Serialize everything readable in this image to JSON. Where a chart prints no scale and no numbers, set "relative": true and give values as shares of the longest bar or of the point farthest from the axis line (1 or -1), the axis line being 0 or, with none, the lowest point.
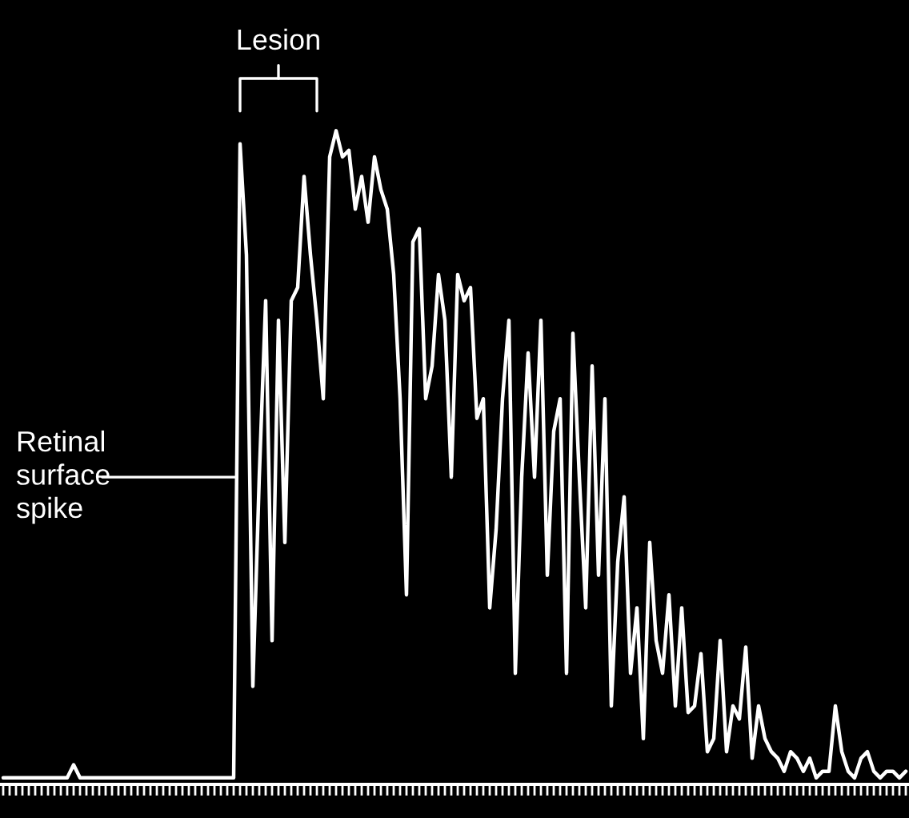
{
  "chart_data": {
    "type": "line",
    "relative": true,
    "grid": false,
    "legend": false,
    "marker": "none",
    "line_style": "solid",
    "categories": [
      null,
      null,
      null,
      null,
      null,
      null,
      null,
      null,
      null,
      null,
      null,
      null,
      null,
      null,
      null,
      null,
      null,
      null,
      null,
      null,
      null,
      null,
      null,
      null,
      null,
      null,
      null,
      null,
      null,
      null,
      null,
      null,
      null,
      null,
      null,
      null,
      null,
      null,
      null,
      null,
      null,
      null,
      null,
      null,
      null,
      null,
      null,
      null,
      null,
      null,
      null,
      null,
      null,
      null,
      null,
      null,
      null,
      null,
      null,
      null,
      null,
      null,
      null,
      null,
      null,
      null,
      null,
      null,
      null,
      null,
      null,
      null,
      null,
      null,
      null,
      null,
      null,
      null,
      null,
      null,
      null,
      null,
      null,
      null,
      null,
      null,
      null,
      null,
      null,
      null,
      null,
      null,
      null,
      null,
      null,
      null,
      null,
      null,
      null,
      null,
      null,
      null,
      null,
      null,
      null,
      null,
      null,
      null,
      null,
      null,
      null,
      null,
      null,
      null,
      null,
      null,
      null,
      null,
      null,
      null,
      null,
      null,
      null,
      null,
      null,
      null,
      null,
      null,
      null,
      null,
      null,
      null,
      null,
      null,
      null,
      null,
      null,
      null,
      null,
      null,
      null,
      null
    ],
    "series": [
      {
        "color": "#ffffff",
        "values": [
          0.01,
          0.01,
          0.01,
          0.01,
          0.01,
          0.01,
          0.01,
          0.01,
          0.01,
          0.01,
          0.01,
          0.03,
          0.01,
          0.01,
          0.01,
          0.01,
          0.01,
          0.01,
          0.01,
          0.01,
          0.01,
          0.01,
          0.01,
          0.01,
          0.01,
          0.01,
          0.01,
          0.01,
          0.01,
          0.01,
          0.01,
          0.01,
          0.01,
          0.01,
          0.01,
          0.01,
          0.01,
          0.98,
          0.81,
          0.15,
          0.47,
          0.74,
          0.22,
          0.71,
          0.37,
          0.74,
          0.76,
          0.93,
          0.81,
          0.71,
          0.59,
          0.96,
          1.0,
          0.96,
          0.97,
          0.88,
          0.93,
          0.86,
          0.96,
          0.91,
          0.88,
          0.78,
          0.59,
          0.29,
          0.83,
          0.85,
          0.59,
          0.64,
          0.78,
          0.71,
          0.47,
          0.78,
          0.74,
          0.76,
          0.56,
          0.59,
          0.27,
          0.39,
          0.59,
          0.71,
          0.17,
          0.47,
          0.66,
          0.47,
          0.71,
          0.32,
          0.54,
          0.59,
          0.17,
          0.69,
          0.47,
          0.27,
          0.64,
          0.32,
          0.59,
          0.12,
          0.34,
          0.44,
          0.17,
          0.27,
          0.07,
          0.37,
          0.22,
          0.17,
          0.29,
          0.12,
          0.27,
          0.11,
          0.12,
          0.2,
          0.05,
          0.07,
          0.22,
          0.05,
          0.12,
          0.1,
          0.21,
          0.04,
          0.12,
          0.07,
          0.05,
          0.04,
          0.02,
          0.05,
          0.04,
          0.02,
          0.04,
          0.01,
          0.02,
          0.02,
          0.12,
          0.05,
          0.02,
          0.01,
          0.04,
          0.05,
          0.02,
          0.01,
          0.02,
          0.02,
          0.01,
          0.02
        ]
      }
    ],
    "annotations": [
      "Lesion",
      "Retinal\nsurface\nspike"
    ]
  }
}
